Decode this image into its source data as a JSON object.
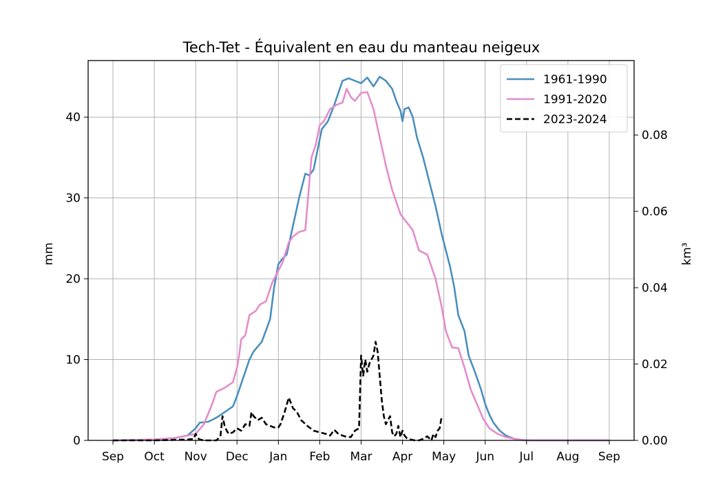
{
  "chart_data": {
    "type": "line",
    "title": "Tech-Tet - Équivalent en eau du manteau neigeux",
    "xlabel": "",
    "ylabel": "mm",
    "ylabel_right": "km³",
    "ylim": [
      0,
      47
    ],
    "ylim_right": [
      0,
      0.0995
    ],
    "xlim": [
      -0.6,
      12.6
    ],
    "x_ticks": [
      0,
      1,
      2,
      3,
      4,
      5,
      6,
      7,
      8,
      9,
      10,
      11,
      12
    ],
    "x_tick_labels": [
      "Sep",
      "Oct",
      "Nov",
      "Dec",
      "Jan",
      "Feb",
      "Mar",
      "Apr",
      "May",
      "Jun",
      "Jul",
      "Aug",
      "Sep"
    ],
    "y_ticks": [
      0,
      10,
      20,
      30,
      40
    ],
    "y_tick_labels": [
      "0",
      "10",
      "20",
      "30",
      "40"
    ],
    "y_right_ticks": [
      0,
      0.02,
      0.04,
      0.06,
      0.08
    ],
    "y_right_tick_labels": [
      "0.00",
      "0.02",
      "0.04",
      "0.06",
      "0.08"
    ],
    "grid": true,
    "legend_position": "top-right",
    "series": [
      {
        "name": "1961-1990",
        "color": "#4a8fbd",
        "style": "solid",
        "x": [
          0,
          1,
          1.5,
          1.8,
          2.0,
          2.1,
          2.3,
          2.5,
          2.7,
          2.9,
          3.0,
          3.1,
          3.3,
          3.4,
          3.6,
          3.8,
          3.9,
          4.0,
          4.1,
          4.2,
          4.35,
          4.5,
          4.65,
          4.75,
          4.85,
          4.95,
          5.05,
          5.2,
          5.35,
          5.45,
          5.55,
          5.7,
          5.85,
          6.0,
          6.15,
          6.3,
          6.45,
          6.6,
          6.75,
          6.85,
          6.95,
          7.0,
          7.05,
          7.15,
          7.25,
          7.35,
          7.5,
          7.65,
          7.8,
          7.95,
          8.05,
          8.15,
          8.25,
          8.35,
          8.5,
          8.6,
          8.75,
          8.9,
          9.0,
          9.1,
          9.2,
          9.35,
          9.5,
          9.7,
          9.9,
          10.1,
          10.4,
          12.0
        ],
        "values": [
          0,
          0.1,
          0.3,
          0.6,
          1.5,
          2.2,
          2.3,
          2.8,
          3.5,
          4.2,
          5.5,
          7.0,
          10.0,
          11.0,
          12.2,
          15.0,
          19.0,
          21.8,
          22.5,
          23.0,
          26.5,
          30.0,
          33.0,
          32.8,
          33.5,
          36.0,
          38.5,
          39.5,
          41.5,
          43.0,
          44.5,
          44.8,
          44.5,
          44.2,
          44.9,
          43.8,
          45.0,
          44.5,
          43.5,
          42.0,
          40.8,
          39.5,
          41.0,
          41.2,
          40.0,
          37.5,
          35.0,
          32.0,
          29.0,
          25.5,
          23.5,
          21.5,
          19.0,
          15.5,
          13.5,
          10.5,
          8.5,
          6.3,
          4.5,
          3.2,
          2.2,
          1.2,
          0.6,
          0.2,
          0.05,
          0,
          0,
          0
        ]
      },
      {
        "name": "1991-2020",
        "color": "#e48ccb",
        "style": "solid",
        "x": [
          0,
          1,
          1.5,
          1.8,
          2.0,
          2.2,
          2.4,
          2.5,
          2.7,
          2.9,
          3.0,
          3.05,
          3.1,
          3.2,
          3.3,
          3.45,
          3.55,
          3.7,
          3.85,
          4.0,
          4.1,
          4.25,
          4.35,
          4.5,
          4.65,
          4.8,
          4.9,
          5.0,
          5.1,
          5.25,
          5.4,
          5.55,
          5.65,
          5.75,
          5.85,
          6.0,
          6.15,
          6.3,
          6.45,
          6.6,
          6.75,
          6.85,
          6.95,
          7.1,
          7.25,
          7.4,
          7.6,
          7.8,
          7.95,
          8.05,
          8.2,
          8.35,
          8.5,
          8.65,
          8.8,
          8.95,
          9.1,
          9.3,
          9.5,
          9.8,
          10.0,
          10.3,
          12.0
        ],
        "values": [
          0,
          0.1,
          0.3,
          0.6,
          0.8,
          2.0,
          4.5,
          6.0,
          6.5,
          7.2,
          9.0,
          10.5,
          12.5,
          13.0,
          15.5,
          16.0,
          16.8,
          17.2,
          19.5,
          21.0,
          22.0,
          24.5,
          25.2,
          25.8,
          26.0,
          35.0,
          36.5,
          39.0,
          39.5,
          41.0,
          41.5,
          41.8,
          43.5,
          42.5,
          42.0,
          43.0,
          43.1,
          41.0,
          37.5,
          34.0,
          31.0,
          29.5,
          28.0,
          27.0,
          26.0,
          23.5,
          23.0,
          20.0,
          16.5,
          13.5,
          11.5,
          11.4,
          9.0,
          6.3,
          4.5,
          2.7,
          1.5,
          0.8,
          0.4,
          0.1,
          0,
          0,
          0
        ]
      },
      {
        "name": "2023-2024",
        "color": "#000000",
        "style": "dashed",
        "x": [
          0,
          1,
          1.8,
          1.95,
          2.0,
          2.05,
          2.1,
          2.2,
          2.3,
          2.5,
          2.6,
          2.65,
          2.7,
          2.75,
          2.8,
          2.9,
          3.0,
          3.1,
          3.2,
          3.3,
          3.35,
          3.4,
          3.5,
          3.6,
          3.7,
          3.8,
          3.9,
          4.0,
          4.05,
          4.15,
          4.25,
          4.35,
          4.45,
          4.55,
          4.7,
          4.85,
          5.0,
          5.15,
          5.25,
          5.35,
          5.45,
          5.6,
          5.75,
          5.85,
          5.95,
          6.0,
          6.05,
          6.1,
          6.15,
          6.2,
          6.3,
          6.35,
          6.4,
          6.45,
          6.5,
          6.55,
          6.6,
          6.65,
          6.7,
          6.75,
          6.8,
          6.85,
          6.9,
          6.95,
          7.0,
          7.05,
          7.1,
          7.2,
          7.3,
          7.4,
          7.5,
          7.6,
          7.7,
          7.75,
          7.8,
          7.85,
          7.9,
          7.95
        ],
        "values": [
          0,
          0,
          0.1,
          0.2,
          0.8,
          0.3,
          0.1,
          0,
          0,
          0,
          0.5,
          3.0,
          1.8,
          1.2,
          0.8,
          1.0,
          1.5,
          1.2,
          2.0,
          1.8,
          3.5,
          3.0,
          2.5,
          2.8,
          2.0,
          1.8,
          1.6,
          1.6,
          2.0,
          3.5,
          5.3,
          4.0,
          3.5,
          2.5,
          1.8,
          1.2,
          1.0,
          0.8,
          0.6,
          1.3,
          0.8,
          0.5,
          0.4,
          1.2,
          1.5,
          10.5,
          8.0,
          10.0,
          8.5,
          9.5,
          10.5,
          12.2,
          11.0,
          8.0,
          5.0,
          3.0,
          2.0,
          2.5,
          3.0,
          1.0,
          0.5,
          0.8,
          1.8,
          0.4,
          1.2,
          0.6,
          0.3,
          0.1,
          0,
          0,
          0.2,
          0.5,
          0,
          0.8,
          0.4,
          1.2,
          1.5,
          3.0
        ]
      }
    ]
  }
}
